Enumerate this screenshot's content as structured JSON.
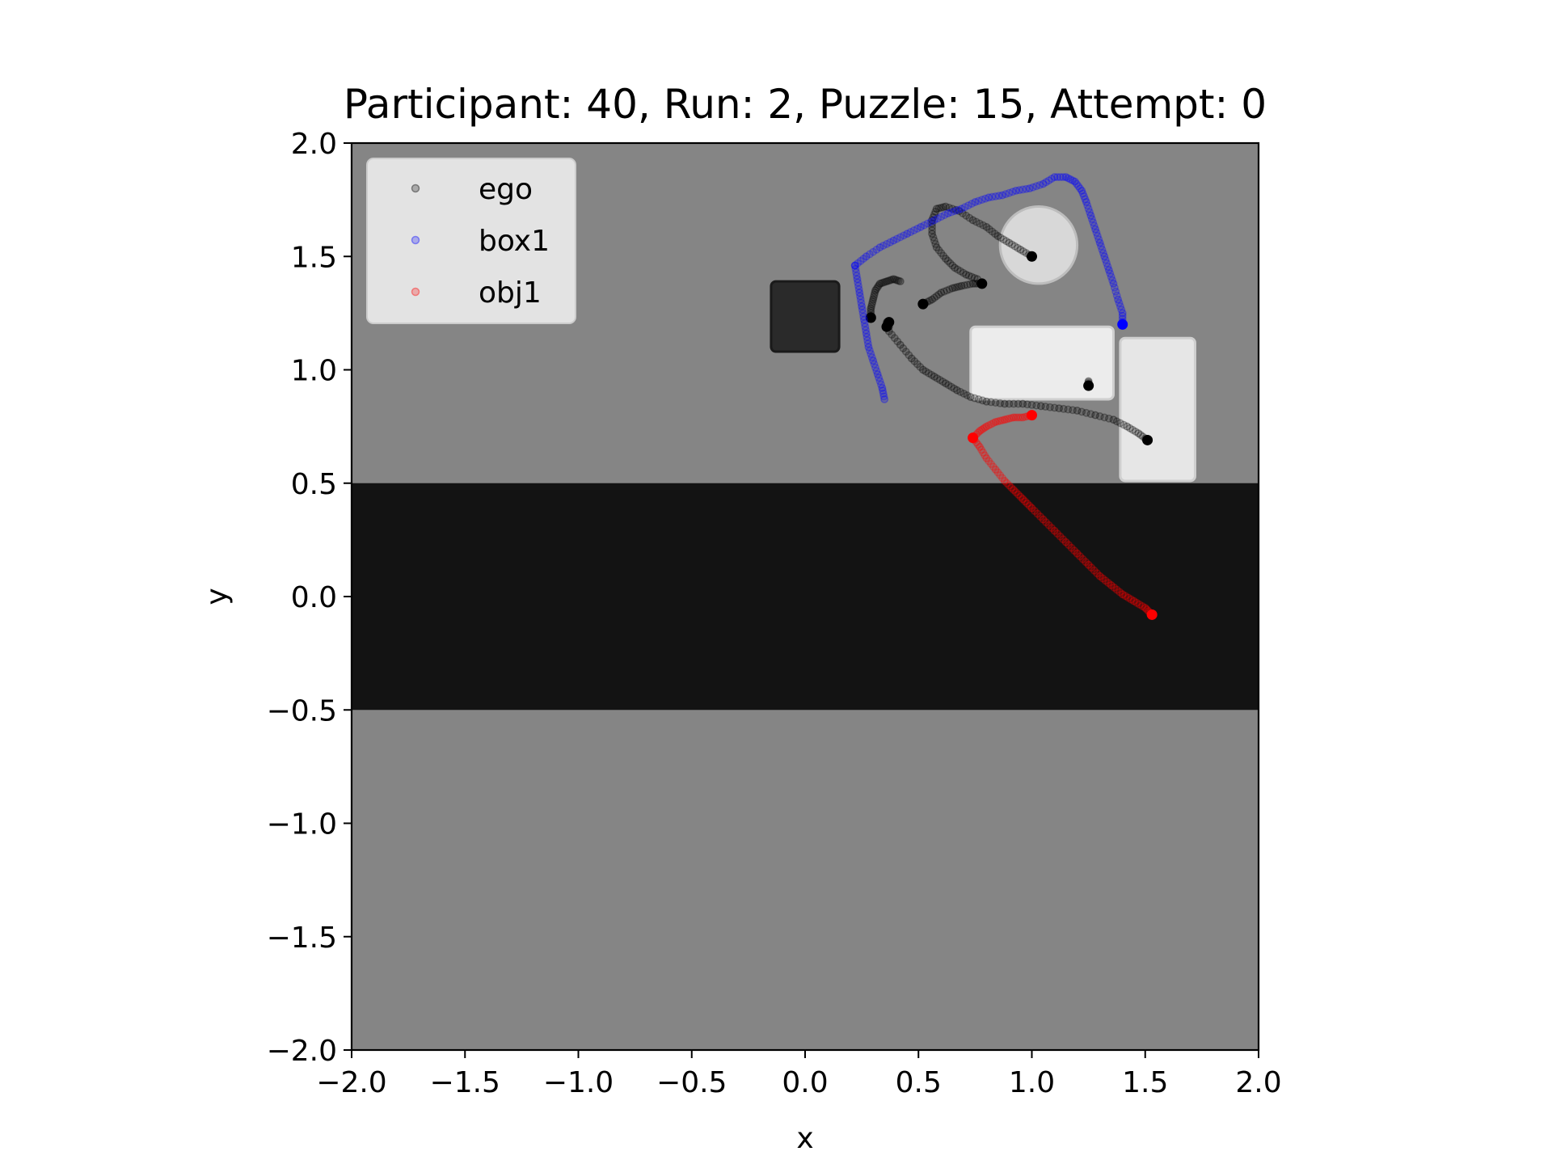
{
  "chart_data": {
    "type": "scatter",
    "title": "Participant: 40, Run: 2, Puzzle: 15, Attempt: 0",
    "xlabel": "x",
    "ylabel": "y",
    "xlim": [
      -2.0,
      2.0
    ],
    "ylim": [
      -2.0,
      2.0
    ],
    "x_ticks": [
      "−2.0",
      "−1.5",
      "−1.0",
      "−0.5",
      "0.0",
      "0.5",
      "1.0",
      "1.5",
      "2.0"
    ],
    "y_ticks": [
      "2.0",
      "1.5",
      "1.0",
      "0.5",
      "0.0",
      "−0.5",
      "−1.0",
      "−1.5",
      "−2.0"
    ],
    "grid": false,
    "legend_position": "top-left",
    "background_image": {
      "floor_color": "#858585",
      "dark_band_color": "#131313",
      "dark_band_y": [
        -0.5,
        0.5
      ],
      "objects": [
        {
          "kind": "dark-box",
          "x": [
            -0.15,
            0.15
          ],
          "y": [
            1.08,
            1.39
          ],
          "color": "#2a2a2a"
        },
        {
          "kind": "cylinder",
          "cx": 1.03,
          "cy": 1.55,
          "r": 0.17,
          "color": "#d8d8d8"
        },
        {
          "kind": "white-box",
          "x": [
            0.73,
            1.36
          ],
          "y": [
            0.87,
            1.19
          ],
          "color": "#ececec"
        },
        {
          "kind": "white-box",
          "x": [
            1.39,
            1.72
          ],
          "y": [
            0.51,
            1.14
          ],
          "color": "#e6e6e6"
        }
      ]
    },
    "series": [
      {
        "name": "ego",
        "color": "#000000",
        "segments": [
          [
            [
              1.0,
              1.5
            ],
            [
              0.95,
              1.53
            ],
            [
              0.9,
              1.56
            ],
            [
              0.85,
              1.59
            ],
            [
              0.8,
              1.63
            ],
            [
              0.74,
              1.66
            ],
            [
              0.68,
              1.7
            ],
            [
              0.62,
              1.72
            ],
            [
              0.58,
              1.71
            ],
            [
              0.56,
              1.66
            ],
            [
              0.56,
              1.6
            ],
            [
              0.58,
              1.54
            ],
            [
              0.62,
              1.49
            ],
            [
              0.66,
              1.45
            ],
            [
              0.71,
              1.42
            ],
            [
              0.76,
              1.4
            ]
          ],
          [
            [
              0.78,
              1.38
            ],
            [
              0.74,
              1.38
            ],
            [
              0.69,
              1.37
            ],
            [
              0.65,
              1.36
            ],
            [
              0.6,
              1.34
            ],
            [
              0.56,
              1.31
            ],
            [
              0.52,
              1.29
            ]
          ],
          [
            [
              0.29,
              1.23
            ],
            [
              0.29,
              1.27
            ],
            [
              0.3,
              1.31
            ],
            [
              0.31,
              1.35
            ],
            [
              0.33,
              1.38
            ],
            [
              0.36,
              1.39
            ],
            [
              0.39,
              1.4
            ],
            [
              0.42,
              1.39
            ]
          ],
          [
            [
              0.37,
              1.19
            ],
            [
              0.36,
              1.21
            ],
            [
              0.36,
              1.19
            ]
          ],
          [
            [
              0.37,
              1.17
            ],
            [
              0.42,
              1.11
            ],
            [
              0.47,
              1.05
            ],
            [
              0.52,
              1.0
            ],
            [
              0.57,
              0.97
            ],
            [
              0.62,
              0.94
            ],
            [
              0.67,
              0.91
            ],
            [
              0.73,
              0.88
            ],
            [
              0.8,
              0.86
            ],
            [
              0.88,
              0.85
            ],
            [
              0.96,
              0.85
            ],
            [
              1.04,
              0.84
            ],
            [
              1.12,
              0.83
            ],
            [
              1.2,
              0.82
            ],
            [
              1.28,
              0.8
            ],
            [
              1.36,
              0.78
            ],
            [
              1.42,
              0.75
            ],
            [
              1.47,
              0.72
            ],
            [
              1.51,
              0.69
            ]
          ],
          [
            [
              1.25,
              0.93
            ],
            [
              1.25,
              0.95
            ]
          ]
        ],
        "final_points": [
          [
            1.0,
            1.5
          ],
          [
            0.78,
            1.38
          ],
          [
            0.52,
            1.29
          ],
          [
            0.29,
            1.23
          ],
          [
            0.36,
            1.19
          ],
          [
            0.37,
            1.21
          ],
          [
            1.25,
            0.93
          ],
          [
            1.51,
            0.69
          ]
        ]
      },
      {
        "name": "box1",
        "color": "#0000ff",
        "segments": [
          [
            [
              0.22,
              1.46
            ],
            [
              0.27,
              1.5
            ],
            [
              0.33,
              1.54
            ],
            [
              0.39,
              1.57
            ],
            [
              0.45,
              1.6
            ],
            [
              0.51,
              1.63
            ],
            [
              0.57,
              1.66
            ],
            [
              0.63,
              1.69
            ],
            [
              0.69,
              1.71
            ],
            [
              0.75,
              1.74
            ],
            [
              0.81,
              1.76
            ],
            [
              0.87,
              1.77
            ],
            [
              0.93,
              1.79
            ],
            [
              0.99,
              1.8
            ],
            [
              1.05,
              1.82
            ],
            [
              1.1,
              1.85
            ],
            [
              1.15,
              1.85
            ],
            [
              1.19,
              1.83
            ],
            [
              1.22,
              1.79
            ],
            [
              1.24,
              1.74
            ],
            [
              1.26,
              1.68
            ],
            [
              1.28,
              1.62
            ],
            [
              1.3,
              1.56
            ],
            [
              1.32,
              1.5
            ],
            [
              1.34,
              1.44
            ],
            [
              1.36,
              1.38
            ],
            [
              1.38,
              1.31
            ],
            [
              1.4,
              1.25
            ],
            [
              1.4,
              1.2
            ]
          ],
          [
            [
              0.22,
              1.46
            ],
            [
              0.23,
              1.4
            ],
            [
              0.24,
              1.34
            ],
            [
              0.25,
              1.28
            ],
            [
              0.26,
              1.22
            ],
            [
              0.27,
              1.16
            ],
            [
              0.28,
              1.1
            ],
            [
              0.3,
              1.04
            ],
            [
              0.32,
              0.98
            ],
            [
              0.34,
              0.92
            ],
            [
              0.35,
              0.87
            ]
          ]
        ],
        "final_points": [
          [
            1.4,
            1.2
          ]
        ]
      },
      {
        "name": "obj1",
        "color": "#ff0000",
        "segments": [
          [
            [
              0.74,
              0.7
            ],
            [
              0.77,
              0.66
            ],
            [
              0.8,
              0.61
            ],
            [
              0.84,
              0.56
            ],
            [
              0.88,
              0.51
            ],
            [
              0.92,
              0.47
            ],
            [
              0.96,
              0.43
            ],
            [
              1.0,
              0.39
            ],
            [
              1.05,
              0.34
            ],
            [
              1.1,
              0.29
            ],
            [
              1.15,
              0.24
            ],
            [
              1.2,
              0.19
            ],
            [
              1.25,
              0.14
            ],
            [
              1.3,
              0.09
            ],
            [
              1.35,
              0.05
            ],
            [
              1.4,
              0.01
            ],
            [
              1.45,
              -0.02
            ],
            [
              1.5,
              -0.05
            ],
            [
              1.53,
              -0.08
            ]
          ],
          [
            [
              0.74,
              0.7
            ],
            [
              0.77,
              0.73
            ],
            [
              0.8,
              0.75
            ],
            [
              0.84,
              0.77
            ],
            [
              0.88,
              0.78
            ],
            [
              0.92,
              0.79
            ],
            [
              0.96,
              0.79
            ],
            [
              1.0,
              0.8
            ]
          ]
        ],
        "final_points": [
          [
            0.74,
            0.7
          ],
          [
            1.0,
            0.8
          ],
          [
            1.53,
            -0.08
          ]
        ]
      }
    ]
  }
}
